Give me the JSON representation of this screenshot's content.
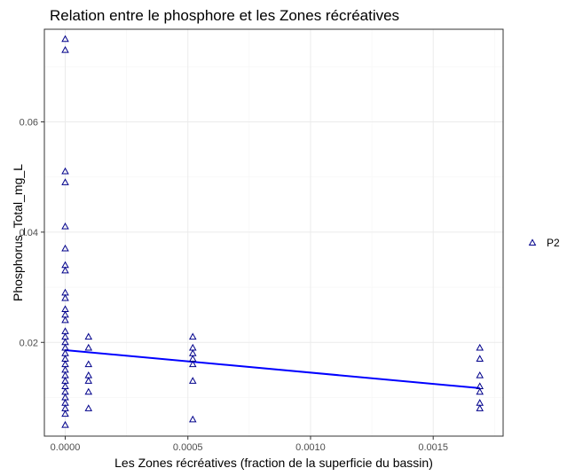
{
  "chart_data": {
    "type": "scatter",
    "title": "Relation entre le phosphore et les Zones récréatives",
    "xlabel": "Les Zones récréatives (fraction de la superficie du bassin)",
    "ylabel": "Phosphorus_Total_mg_L",
    "xlim": [
      -8.5e-05,
      0.001785
    ],
    "ylim": [
      0.003,
      0.0768
    ],
    "x_ticks": [
      0.0,
      0.0005,
      0.001,
      0.0015
    ],
    "x_tick_labels": [
      "0.0000",
      "0.0005",
      "0.0010",
      "0.0015"
    ],
    "y_ticks": [
      0.02,
      0.04,
      0.06
    ],
    "y_tick_labels": [
      "0.02",
      "0.04",
      "0.06"
    ],
    "grid": true,
    "legend_position": "right",
    "series": [
      {
        "name": "P2",
        "marker": "triangle-open",
        "color": "#00008b",
        "points": [
          [
            0.0,
            0.075
          ],
          [
            0.0,
            0.073
          ],
          [
            0.0,
            0.051
          ],
          [
            0.0,
            0.049
          ],
          [
            0.0,
            0.041
          ],
          [
            0.0,
            0.037
          ],
          [
            0.0,
            0.034
          ],
          [
            0.0,
            0.033
          ],
          [
            0.0,
            0.029
          ],
          [
            0.0,
            0.028
          ],
          [
            0.0,
            0.026
          ],
          [
            0.0,
            0.025
          ],
          [
            0.0,
            0.024
          ],
          [
            0.0,
            0.022
          ],
          [
            0.0,
            0.021
          ],
          [
            0.0,
            0.02
          ],
          [
            0.0,
            0.019
          ],
          [
            0.0,
            0.018
          ],
          [
            0.0,
            0.017
          ],
          [
            0.0,
            0.016
          ],
          [
            0.0,
            0.015
          ],
          [
            0.0,
            0.014
          ],
          [
            0.0,
            0.013
          ],
          [
            0.0,
            0.012
          ],
          [
            0.0,
            0.011
          ],
          [
            0.0,
            0.01
          ],
          [
            0.0,
            0.009
          ],
          [
            0.0,
            0.008
          ],
          [
            0.0,
            0.007
          ],
          [
            0.0,
            0.005
          ],
          [
            9.5e-05,
            0.021
          ],
          [
            9.5e-05,
            0.019
          ],
          [
            9.5e-05,
            0.016
          ],
          [
            9.5e-05,
            0.014
          ],
          [
            9.5e-05,
            0.013
          ],
          [
            9.5e-05,
            0.011
          ],
          [
            9.5e-05,
            0.008
          ],
          [
            0.00052,
            0.021
          ],
          [
            0.00052,
            0.019
          ],
          [
            0.00052,
            0.018
          ],
          [
            0.00052,
            0.017
          ],
          [
            0.00052,
            0.016
          ],
          [
            0.00052,
            0.013
          ],
          [
            0.00052,
            0.006
          ],
          [
            0.00169,
            0.019
          ],
          [
            0.00169,
            0.017
          ],
          [
            0.00169,
            0.014
          ],
          [
            0.00169,
            0.012
          ],
          [
            0.00169,
            0.011
          ],
          [
            0.00169,
            0.009
          ],
          [
            0.00169,
            0.008
          ]
        ]
      }
    ],
    "trend_line": {
      "color": "#0000ff",
      "x": [
        0.0,
        0.00169
      ],
      "y": [
        0.0186,
        0.0117
      ]
    },
    "colors": {
      "panel_border": "#333333",
      "grid_major": "#ebebeb",
      "grid_minor": "#f5f5f5",
      "tick_color": "#333333"
    }
  }
}
